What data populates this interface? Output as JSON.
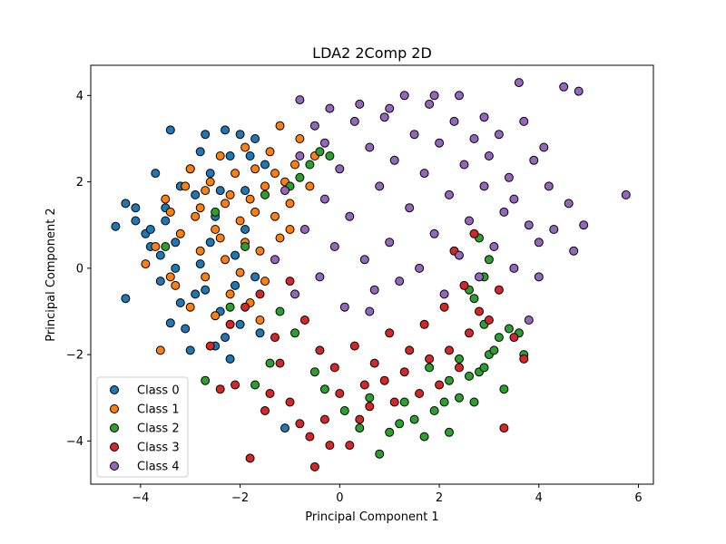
{
  "chart_data": {
    "type": "scatter",
    "title": "LDA2 2Comp 2D",
    "xlabel": "Principal Component 1",
    "ylabel": "Principal Component 2",
    "xlim": [
      -5.0,
      6.3
    ],
    "ylim": [
      -5.0,
      4.7
    ],
    "xticks": [
      -4,
      -2,
      0,
      2,
      4,
      6
    ],
    "yticks": [
      -4,
      -2,
      0,
      2,
      4
    ],
    "grid": false,
    "legend": "lower-left",
    "series": [
      {
        "name": "Class 0",
        "color": "#1f77b4",
        "points": [
          [
            -4.5,
            0.97
          ],
          [
            -4.3,
            1.5
          ],
          [
            -4.3,
            -0.7
          ],
          [
            -4.1,
            1.4
          ],
          [
            -4.1,
            1.1
          ],
          [
            -3.9,
            0.8
          ],
          [
            -3.8,
            0.9
          ],
          [
            -3.7,
            2.2
          ],
          [
            -3.6,
            0.3
          ],
          [
            -3.5,
            1.4
          ],
          [
            -3.5,
            1.1
          ],
          [
            -3.4,
            3.2
          ],
          [
            -3.4,
            -1.27
          ],
          [
            -3.3,
            0.6
          ],
          [
            -3.3,
            0.0
          ],
          [
            -3.2,
            -0.8
          ],
          [
            -3.1,
            -1.4
          ],
          [
            -3.0,
            2.3
          ],
          [
            -3.0,
            -1.9
          ],
          [
            -2.9,
            1.7
          ],
          [
            -2.8,
            0.1
          ],
          [
            -2.7,
            3.1
          ],
          [
            -2.7,
            -0.5
          ],
          [
            -2.6,
            2.2
          ],
          [
            -2.5,
            1.2
          ],
          [
            -2.4,
            -1.0
          ],
          [
            -2.3,
            3.2
          ],
          [
            -2.3,
            -1.6
          ],
          [
            -2.2,
            2.6
          ],
          [
            -2.2,
            -2.1
          ],
          [
            -2.1,
            0.3
          ],
          [
            -2.0,
            3.1
          ],
          [
            -2.0,
            -1.3
          ],
          [
            -1.9,
            1.8
          ],
          [
            -1.8,
            2.6
          ],
          [
            -1.7,
            3.0
          ],
          [
            -1.7,
            -0.2
          ],
          [
            -1.6,
            -1.5
          ],
          [
            -1.5,
            2.4
          ],
          [
            -1.1,
            -3.7
          ],
          [
            -3.8,
            0.5
          ],
          [
            -3.6,
            -0.3
          ],
          [
            -2.9,
            -0.6
          ],
          [
            -2.6,
            0.6
          ],
          [
            -2.4,
            1.8
          ],
          [
            -2.1,
            -0.4
          ],
          [
            -1.9,
            0.9
          ],
          [
            -3.2,
            1.9
          ],
          [
            -2.8,
            2.7
          ],
          [
            -2.5,
            -1.8
          ]
        ]
      },
      {
        "name": "Class 1",
        "color": "#ff7f0e",
        "points": [
          [
            -3.9,
            0.1
          ],
          [
            -3.7,
            0.5
          ],
          [
            -3.6,
            -1.9
          ],
          [
            -3.5,
            1.6
          ],
          [
            -3.4,
            1.3
          ],
          [
            -3.3,
            -0.4
          ],
          [
            -3.2,
            0.8
          ],
          [
            -3.1,
            1.9
          ],
          [
            -3.0,
            2.3
          ],
          [
            -3.0,
            -0.9
          ],
          [
            -2.9,
            1.2
          ],
          [
            -2.8,
            0.4
          ],
          [
            -2.7,
            1.8
          ],
          [
            -2.7,
            -0.2
          ],
          [
            -2.6,
            2.0
          ],
          [
            -2.5,
            0.9
          ],
          [
            -2.5,
            -1.1
          ],
          [
            -2.4,
            2.6
          ],
          [
            -2.3,
            1.5
          ],
          [
            -2.3,
            0.2
          ],
          [
            -2.2,
            -0.6
          ],
          [
            -2.1,
            2.2
          ],
          [
            -2.0,
            1.1
          ],
          [
            -2.0,
            -0.1
          ],
          [
            -1.9,
            2.8
          ],
          [
            -1.9,
            0.6
          ],
          [
            -1.8,
            1.6
          ],
          [
            -1.8,
            -0.8
          ],
          [
            -1.7,
            2.3
          ],
          [
            -1.6,
            0.4
          ],
          [
            -1.5,
            1.9
          ],
          [
            -1.5,
            -0.3
          ],
          [
            -1.4,
            2.7
          ],
          [
            -1.3,
            1.2
          ],
          [
            -1.2,
            3.3
          ],
          [
            -1.2,
            0.7
          ],
          [
            -1.1,
            2.0
          ],
          [
            -1.0,
            1.5
          ],
          [
            -0.9,
            2.4
          ],
          [
            -0.8,
            3.0
          ],
          [
            -0.6,
            1.9
          ],
          [
            -0.5,
            2.6
          ],
          [
            -3.4,
            -0.2
          ],
          [
            -2.2,
            1.7
          ],
          [
            -1.6,
            -1.2
          ],
          [
            -2.8,
            1.4
          ],
          [
            -2.4,
            0.7
          ],
          [
            -1.7,
            1.3
          ],
          [
            -1.3,
            2.2
          ],
          [
            -1.0,
            0.9
          ]
        ]
      },
      {
        "name": "Class 2",
        "color": "#2ca02c",
        "points": [
          [
            -2.7,
            -2.6
          ],
          [
            -1.7,
            -2.7
          ],
          [
            -3.5,
            0.5
          ],
          [
            -2.5,
            1.3
          ],
          [
            -2.2,
            -0.9
          ],
          [
            -1.9,
            0.5
          ],
          [
            -1.5,
            1.7
          ],
          [
            -1.2,
            -1.0
          ],
          [
            -1.0,
            1.9
          ],
          [
            -0.8,
            2.1
          ],
          [
            -0.6,
            2.4
          ],
          [
            -0.4,
            2.7
          ],
          [
            -0.2,
            2.6
          ],
          [
            -0.5,
            -2.4
          ],
          [
            -0.3,
            -2.8
          ],
          [
            0.1,
            -3.3
          ],
          [
            0.4,
            -3.7
          ],
          [
            0.8,
            -4.3
          ],
          [
            1.0,
            -3.8
          ],
          [
            1.3,
            -3.1
          ],
          [
            1.5,
            -3.5
          ],
          [
            1.7,
            -3.9
          ],
          [
            1.9,
            -3.3
          ],
          [
            2.1,
            -3.1
          ],
          [
            2.2,
            -3.8
          ],
          [
            2.4,
            -3.0
          ],
          [
            2.6,
            -2.5
          ],
          [
            2.7,
            -3.1
          ],
          [
            2.8,
            -2.4
          ],
          [
            2.9,
            -2.3
          ],
          [
            3.0,
            -2.0
          ],
          [
            3.1,
            -1.9
          ],
          [
            3.2,
            -1.6
          ],
          [
            3.3,
            -2.8
          ],
          [
            3.4,
            -1.4
          ],
          [
            3.6,
            -1.5
          ],
          [
            3.7,
            -2.0
          ],
          [
            2.9,
            -1.3
          ],
          [
            2.7,
            -0.7
          ],
          [
            2.9,
            -0.2
          ],
          [
            3.0,
            0.2
          ],
          [
            2.8,
            0.7
          ],
          [
            2.6,
            -0.5
          ],
          [
            2.4,
            -2.1
          ],
          [
            2.2,
            -2.6
          ],
          [
            1.8,
            -2.3
          ],
          [
            1.2,
            -3.6
          ],
          [
            0.6,
            -3.0
          ],
          [
            -1.4,
            -2.2
          ],
          [
            -0.9,
            -1.5
          ]
        ]
      },
      {
        "name": "Class 3",
        "color": "#d62728",
        "points": [
          [
            -2.4,
            -2.8
          ],
          [
            -2.1,
            -2.7
          ],
          [
            -1.8,
            -4.4
          ],
          [
            -1.5,
            -3.3
          ],
          [
            -1.2,
            -2.2
          ],
          [
            -1.0,
            -3.1
          ],
          [
            -0.8,
            -3.6
          ],
          [
            -0.6,
            -3.9
          ],
          [
            -0.5,
            -4.6
          ],
          [
            -0.3,
            -3.5
          ],
          [
            -0.2,
            -4.1
          ],
          [
            0.0,
            -2.9
          ],
          [
            0.2,
            -4.1
          ],
          [
            0.4,
            -3.5
          ],
          [
            0.6,
            -3.2
          ],
          [
            0.9,
            -2.6
          ],
          [
            1.1,
            -3.1
          ],
          [
            1.3,
            -2.4
          ],
          [
            1.6,
            -2.9
          ],
          [
            1.8,
            -2.1
          ],
          [
            2.0,
            -2.7
          ],
          [
            2.2,
            -1.9
          ],
          [
            2.4,
            -2.3
          ],
          [
            2.6,
            -1.5
          ],
          [
            2.8,
            -1.0
          ],
          [
            3.0,
            -1.2
          ],
          [
            3.2,
            -0.5
          ],
          [
            3.3,
            -3.7
          ],
          [
            3.5,
            -1.6
          ],
          [
            3.7,
            -2.1
          ],
          [
            -2.6,
            -1.8
          ],
          [
            -2.2,
            -1.3
          ],
          [
            -1.9,
            -0.9
          ],
          [
            -1.6,
            -0.6
          ],
          [
            -1.3,
            -1.6
          ],
          [
            -1.0,
            -0.3
          ],
          [
            -0.7,
            -1.2
          ],
          [
            -0.4,
            -1.9
          ],
          [
            -0.1,
            -2.3
          ],
          [
            0.3,
            -1.8
          ],
          [
            0.7,
            -2.2
          ],
          [
            1.0,
            -1.5
          ],
          [
            1.4,
            -1.9
          ],
          [
            1.7,
            -1.3
          ],
          [
            2.1,
            -0.9
          ],
          [
            2.5,
            -0.4
          ],
          [
            2.3,
            0.4
          ],
          [
            2.7,
            0.8
          ],
          [
            -1.4,
            -2.9
          ],
          [
            0.5,
            -2.7
          ]
        ]
      },
      {
        "name": "Class 4",
        "color": "#9467bd",
        "points": [
          [
            -1.3,
            0.2
          ],
          [
            -1.1,
            1.8
          ],
          [
            -0.9,
            -0.6
          ],
          [
            -0.8,
            2.6
          ],
          [
            -0.7,
            0.9
          ],
          [
            -0.5,
            3.3
          ],
          [
            -0.4,
            -0.2
          ],
          [
            -0.3,
            1.6
          ],
          [
            -0.2,
            3.7
          ],
          [
            -0.1,
            0.5
          ],
          [
            0.0,
            2.3
          ],
          [
            0.1,
            -0.9
          ],
          [
            0.2,
            1.2
          ],
          [
            0.4,
            3.8
          ],
          [
            0.5,
            0.2
          ],
          [
            0.6,
            2.8
          ],
          [
            0.7,
            -0.5
          ],
          [
            0.8,
            1.9
          ],
          [
            0.9,
            3.5
          ],
          [
            1.0,
            0.6
          ],
          [
            1.1,
            2.5
          ],
          [
            1.2,
            -0.3
          ],
          [
            1.3,
            4.0
          ],
          [
            1.4,
            1.4
          ],
          [
            1.5,
            3.1
          ],
          [
            1.6,
            0.0
          ],
          [
            1.7,
            2.2
          ],
          [
            1.8,
            3.8
          ],
          [
            1.9,
            0.8
          ],
          [
            2.0,
            2.9
          ],
          [
            2.1,
            -0.6
          ],
          [
            2.2,
            1.7
          ],
          [
            2.3,
            3.4
          ],
          [
            2.4,
            0.3
          ],
          [
            2.5,
            2.4
          ],
          [
            2.6,
            1.1
          ],
          [
            2.7,
            3.0
          ],
          [
            2.8,
            -0.2
          ],
          [
            2.9,
            1.9
          ],
          [
            3.0,
            2.6
          ],
          [
            3.1,
            0.5
          ],
          [
            3.2,
            3.1
          ],
          [
            3.3,
            1.3
          ],
          [
            3.4,
            2.1
          ],
          [
            3.5,
            0.0
          ],
          [
            3.6,
            4.3
          ],
          [
            3.7,
            3.4
          ],
          [
            3.8,
            1.0
          ],
          [
            3.9,
            2.5
          ],
          [
            4.0,
            0.6
          ],
          [
            4.1,
            2.8
          ],
          [
            4.2,
            1.9
          ],
          [
            4.3,
            0.9
          ],
          [
            4.5,
            4.2
          ],
          [
            4.6,
            1.5
          ],
          [
            4.7,
            0.4
          ],
          [
            4.8,
            4.1
          ],
          [
            4.9,
            1.0
          ],
          [
            5.75,
            1.7
          ],
          [
            3.8,
            -1.2
          ],
          [
            4.0,
            -0.2
          ],
          [
            3.5,
            1.6
          ],
          [
            2.9,
            3.5
          ],
          [
            2.4,
            4.0
          ],
          [
            1.9,
            4.0
          ],
          [
            1.0,
            3.7
          ],
          [
            0.3,
            3.4
          ],
          [
            -0.8,
            3.9
          ],
          [
            -0.3,
            2.9
          ],
          [
            0.6,
            -1.0
          ]
        ]
      }
    ]
  }
}
